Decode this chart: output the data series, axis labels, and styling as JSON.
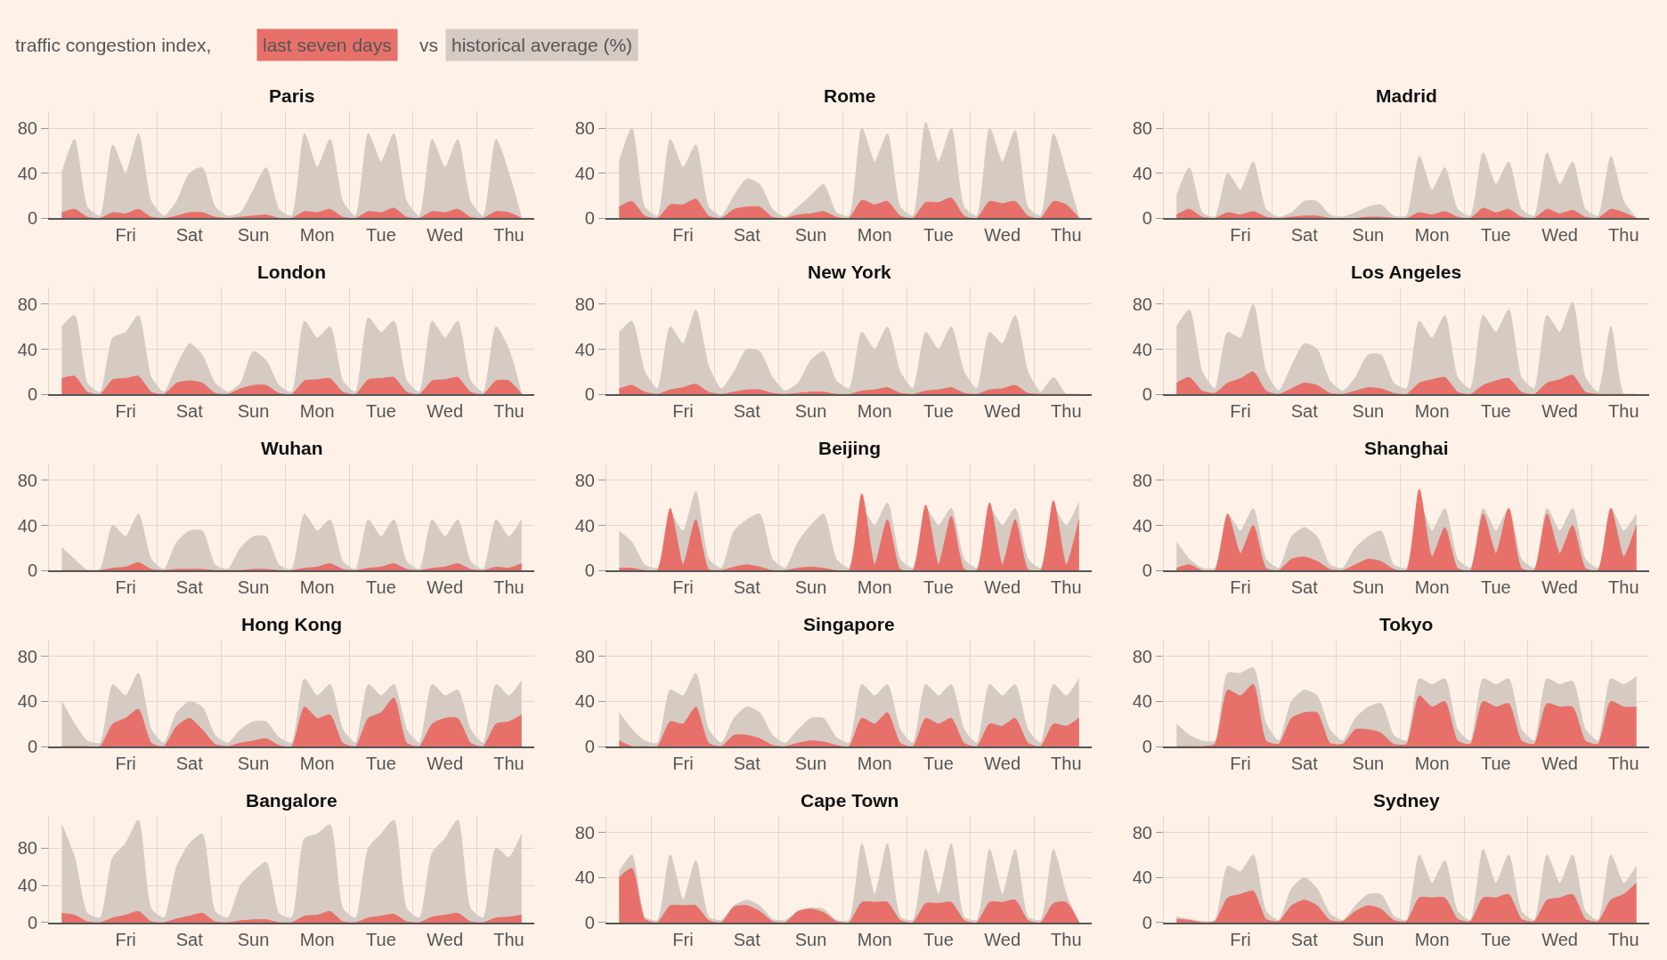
{
  "chart_data": [
    {
      "type": "area",
      "title": "Paris",
      "annotations": [
        "traffic congestion index,",
        "vs"
      ],
      "legend": "top right",
      "grid": true,
      "categories": [
        null,
        null,
        null,
        null,
        null,
        "Fri",
        null,
        null,
        null,
        null,
        "Sat",
        null,
        null,
        null,
        null,
        "Sun",
        null,
        null,
        null,
        null,
        "Mon",
        null,
        null,
        null,
        null,
        "Tue",
        null,
        null,
        null,
        null,
        "Wed",
        null,
        null,
        null,
        null,
        "Thu",
        null
      ],
      "ylim": [
        0,
        95
      ],
      "yticks": [
        0,
        40,
        80
      ],
      "series": [
        {
          "name": "last seven days",
          "color": "#e8706a",
          "values": [
            5,
            8,
            1,
            0,
            5,
            4,
            8,
            1,
            0,
            2,
            5,
            5,
            1,
            0,
            1,
            2,
            3,
            0,
            0,
            6,
            5,
            8,
            1,
            0,
            6,
            5,
            9,
            1,
            0,
            6,
            5,
            8,
            1,
            0,
            6,
            5,
            0
          ]
        },
        {
          "name": "historical average (%)",
          "color": "#d5cbc3",
          "values": [
            40,
            70,
            10,
            2,
            65,
            40,
            75,
            15,
            2,
            15,
            40,
            45,
            10,
            2,
            5,
            25,
            45,
            8,
            2,
            75,
            45,
            70,
            15,
            2,
            75,
            50,
            75,
            15,
            2,
            70,
            45,
            70,
            15,
            2,
            70,
            40,
            0
          ]
        }
      ]
    },
    {
      "type": "area",
      "title": "Rome",
      "grid": true,
      "categories": [
        null,
        null,
        null,
        null,
        null,
        "Fri",
        null,
        null,
        null,
        null,
        "Sat",
        null,
        null,
        null,
        null,
        "Sun",
        null,
        null,
        null,
        null,
        "Mon",
        null,
        null,
        null,
        null,
        "Tue",
        null,
        null,
        null,
        null,
        "Wed",
        null,
        null,
        null,
        null,
        "Thu",
        null
      ],
      "ylim": [
        0,
        95
      ],
      "yticks": [
        0,
        40,
        80
      ],
      "series": [
        {
          "color": "#e8706a",
          "values": [
            10,
            15,
            2,
            0,
            12,
            12,
            17,
            2,
            0,
            8,
            10,
            10,
            1,
            0,
            3,
            4,
            6,
            1,
            0,
            16,
            12,
            15,
            2,
            0,
            14,
            14,
            18,
            2,
            0,
            15,
            13,
            15,
            2,
            0,
            15,
            12,
            0
          ]
        },
        {
          "color": "#d5cbc3",
          "values": [
            50,
            80,
            10,
            2,
            70,
            45,
            65,
            10,
            2,
            20,
            35,
            30,
            8,
            1,
            10,
            20,
            30,
            5,
            2,
            80,
            50,
            75,
            10,
            2,
            85,
            50,
            80,
            10,
            2,
            80,
            50,
            78,
            10,
            2,
            75,
            40,
            0
          ]
        }
      ]
    },
    {
      "type": "area",
      "title": "Madrid",
      "grid": true,
      "categories": [
        null,
        null,
        null,
        null,
        null,
        "Fri",
        null,
        null,
        null,
        null,
        "Sat",
        null,
        null,
        null,
        null,
        "Sun",
        null,
        null,
        null,
        null,
        "Mon",
        null,
        null,
        null,
        null,
        "Tue",
        null,
        null,
        null,
        null,
        "Wed",
        null,
        null,
        null,
        null,
        "Thu",
        null
      ],
      "ylim": [
        0,
        95
      ],
      "yticks": [
        0,
        40,
        80
      ],
      "series": [
        {
          "color": "#e8706a",
          "values": [
            3,
            8,
            1,
            0,
            5,
            3,
            6,
            1,
            0,
            1,
            2,
            2,
            0,
            0,
            0,
            1,
            1,
            0,
            0,
            5,
            3,
            6,
            1,
            0,
            9,
            5,
            8,
            1,
            0,
            8,
            4,
            7,
            1,
            0,
            8,
            5,
            0
          ]
        },
        {
          "color": "#d5cbc3",
          "values": [
            20,
            45,
            5,
            1,
            40,
            25,
            50,
            8,
            1,
            5,
            15,
            15,
            3,
            1,
            5,
            10,
            12,
            2,
            2,
            55,
            25,
            45,
            8,
            2,
            58,
            30,
            50,
            8,
            2,
            58,
            30,
            50,
            8,
            2,
            55,
            15,
            0
          ]
        }
      ]
    },
    {
      "type": "area",
      "title": "London",
      "grid": true,
      "categories": [
        null,
        null,
        null,
        null,
        null,
        "Fri",
        null,
        null,
        null,
        null,
        "Sat",
        null,
        null,
        null,
        null,
        "Sun",
        null,
        null,
        null,
        null,
        "Mon",
        null,
        null,
        null,
        null,
        "Tue",
        null,
        null,
        null,
        null,
        "Wed",
        null,
        null,
        null,
        null,
        "Thu",
        null
      ],
      "ylim": [
        0,
        95
      ],
      "yticks": [
        0,
        40,
        80
      ],
      "series": [
        {
          "color": "#e8706a",
          "values": [
            14,
            16,
            2,
            0,
            13,
            14,
            16,
            2,
            0,
            10,
            12,
            10,
            1,
            0,
            5,
            8,
            8,
            1,
            0,
            12,
            13,
            14,
            2,
            0,
            13,
            14,
            15,
            2,
            0,
            12,
            13,
            15,
            2,
            0,
            12,
            12,
            0
          ]
        },
        {
          "color": "#d5cbc3",
          "values": [
            60,
            70,
            10,
            2,
            50,
            55,
            70,
            15,
            2,
            25,
            45,
            35,
            10,
            2,
            10,
            38,
            30,
            8,
            2,
            65,
            50,
            60,
            12,
            2,
            68,
            55,
            65,
            12,
            2,
            65,
            50,
            65,
            12,
            2,
            60,
            40,
            0
          ]
        }
      ]
    },
    {
      "type": "area",
      "title": "New York",
      "grid": true,
      "categories": [
        null,
        null,
        null,
        null,
        null,
        "Fri",
        null,
        null,
        null,
        null,
        "Sat",
        null,
        null,
        null,
        null,
        "Sun",
        null,
        null,
        null,
        null,
        "Mon",
        null,
        null,
        null,
        null,
        "Tue",
        null,
        null,
        null,
        null,
        "Wed",
        null,
        null,
        null,
        null,
        "Thu",
        null
      ],
      "ylim": [
        0,
        95
      ],
      "yticks": [
        0,
        40,
        80
      ],
      "series": [
        {
          "color": "#e8706a",
          "values": [
            5,
            8,
            2,
            0,
            4,
            6,
            9,
            2,
            0,
            2,
            4,
            4,
            1,
            0,
            1,
            2,
            2,
            0,
            0,
            3,
            4,
            6,
            1,
            0,
            3,
            4,
            6,
            1,
            0,
            4,
            5,
            8,
            1,
            0,
            0,
            0,
            0
          ]
        },
        {
          "color": "#d5cbc3",
          "values": [
            55,
            65,
            20,
            5,
            60,
            45,
            75,
            25,
            5,
            20,
            40,
            38,
            15,
            3,
            10,
            30,
            38,
            12,
            5,
            55,
            40,
            60,
            20,
            5,
            55,
            40,
            60,
            20,
            5,
            55,
            45,
            70,
            20,
            2,
            15,
            0,
            0
          ]
        }
      ]
    },
    {
      "type": "area",
      "title": "Los Angeles",
      "grid": true,
      "categories": [
        null,
        null,
        null,
        null,
        null,
        "Fri",
        null,
        null,
        null,
        null,
        "Sat",
        null,
        null,
        null,
        null,
        "Sun",
        null,
        null,
        null,
        null,
        "Mon",
        null,
        null,
        null,
        null,
        "Tue",
        null,
        null,
        null,
        null,
        "Wed",
        null,
        null,
        null,
        null,
        "Thu",
        null
      ],
      "ylim": [
        0,
        95
      ],
      "yticks": [
        0,
        40,
        80
      ],
      "series": [
        {
          "color": "#e8706a",
          "values": [
            10,
            15,
            3,
            1,
            10,
            14,
            20,
            3,
            0,
            5,
            10,
            8,
            1,
            0,
            3,
            6,
            5,
            1,
            0,
            10,
            13,
            15,
            2,
            0,
            8,
            12,
            14,
            2,
            0,
            10,
            13,
            17,
            2,
            0,
            0,
            0,
            0
          ]
        },
        {
          "color": "#d5cbc3",
          "values": [
            60,
            75,
            20,
            5,
            55,
            50,
            80,
            20,
            3,
            25,
            45,
            40,
            12,
            3,
            15,
            35,
            35,
            10,
            5,
            65,
            50,
            70,
            15,
            5,
            70,
            55,
            75,
            15,
            5,
            70,
            55,
            82,
            15,
            2,
            60,
            0,
            0
          ]
        }
      ]
    },
    {
      "type": "area",
      "title": "Wuhan",
      "grid": true,
      "categories": [
        null,
        null,
        null,
        null,
        null,
        "Fri",
        null,
        null,
        null,
        null,
        "Sat",
        null,
        null,
        null,
        null,
        "Sun",
        null,
        null,
        null,
        null,
        "Mon",
        null,
        null,
        null,
        null,
        "Tue",
        null,
        null,
        null,
        null,
        "Wed",
        null,
        null,
        null,
        null,
        "Thu",
        null
      ],
      "ylim": [
        0,
        95
      ],
      "yticks": [
        0,
        40,
        80
      ],
      "series": [
        {
          "color": "#e8706a",
          "values": [
            0,
            0,
            0,
            0,
            2,
            3,
            7,
            1,
            0,
            1,
            1,
            1,
            0,
            0,
            0,
            1,
            1,
            0,
            0,
            2,
            3,
            6,
            1,
            0,
            2,
            3,
            6,
            1,
            0,
            2,
            3,
            6,
            1,
            0,
            3,
            2,
            6
          ]
        },
        {
          "color": "#d5cbc3",
          "values": [
            20,
            10,
            0,
            1,
            40,
            30,
            50,
            10,
            1,
            25,
            35,
            35,
            5,
            1,
            20,
            30,
            30,
            5,
            1,
            50,
            35,
            45,
            8,
            1,
            45,
            30,
            45,
            8,
            1,
            45,
            30,
            45,
            8,
            1,
            45,
            30,
            45
          ]
        }
      ]
    },
    {
      "type": "area",
      "title": "Beijing",
      "grid": true,
      "categories": [
        null,
        null,
        null,
        null,
        null,
        "Fri",
        null,
        null,
        null,
        null,
        "Sat",
        null,
        null,
        null,
        null,
        "Sun",
        null,
        null,
        null,
        null,
        "Mon",
        null,
        null,
        null,
        null,
        "Tue",
        null,
        null,
        null,
        null,
        "Wed",
        null,
        null,
        null,
        null,
        "Thu",
        null
      ],
      "ylim": [
        0,
        95
      ],
      "yticks": [
        0,
        40,
        80
      ],
      "series": [
        {
          "color": "#e8706a",
          "values": [
            2,
            2,
            0,
            0,
            55,
            5,
            45,
            1,
            0,
            3,
            5,
            3,
            0,
            0,
            2,
            3,
            2,
            0,
            0,
            68,
            5,
            45,
            1,
            0,
            58,
            5,
            48,
            1,
            0,
            60,
            5,
            45,
            1,
            0,
            62,
            5,
            45
          ]
        },
        {
          "color": "#d5cbc3",
          "values": [
            35,
            25,
            5,
            2,
            50,
            35,
            70,
            10,
            2,
            35,
            45,
            50,
            10,
            2,
            25,
            40,
            50,
            10,
            2,
            55,
            40,
            60,
            10,
            2,
            55,
            40,
            55,
            10,
            2,
            55,
            40,
            55,
            10,
            2,
            55,
            40,
            60
          ]
        }
      ]
    },
    {
      "type": "area",
      "title": "Shanghai",
      "grid": true,
      "categories": [
        null,
        null,
        null,
        null,
        null,
        "Fri",
        null,
        null,
        null,
        null,
        "Sat",
        null,
        null,
        null,
        null,
        "Sun",
        null,
        null,
        null,
        null,
        "Mon",
        null,
        null,
        null,
        null,
        "Tue",
        null,
        null,
        null,
        null,
        "Wed",
        null,
        null,
        null,
        null,
        "Thu",
        null
      ],
      "ylim": [
        0,
        95
      ],
      "yticks": [
        0,
        40,
        80
      ],
      "series": [
        {
          "color": "#e8706a",
          "values": [
            2,
            5,
            0,
            0,
            50,
            15,
            40,
            2,
            0,
            10,
            12,
            8,
            1,
            0,
            5,
            10,
            8,
            1,
            0,
            72,
            12,
            38,
            2,
            0,
            50,
            15,
            55,
            2,
            0,
            50,
            15,
            40,
            2,
            0,
            55,
            12,
            40
          ]
        },
        {
          "color": "#d5cbc3",
          "values": [
            25,
            10,
            2,
            2,
            50,
            35,
            55,
            10,
            2,
            30,
            38,
            30,
            5,
            2,
            20,
            30,
            35,
            5,
            2,
            60,
            35,
            55,
            10,
            2,
            55,
            35,
            55,
            10,
            2,
            55,
            35,
            55,
            10,
            2,
            55,
            35,
            50
          ]
        }
      ]
    },
    {
      "type": "area",
      "title": "Hong Kong",
      "grid": true,
      "categories": [
        null,
        null,
        null,
        null,
        null,
        "Fri",
        null,
        null,
        null,
        null,
        "Sat",
        null,
        null,
        null,
        null,
        "Sun",
        null,
        null,
        null,
        null,
        "Mon",
        null,
        null,
        null,
        null,
        "Tue",
        null,
        null,
        null,
        null,
        "Wed",
        null,
        null,
        null,
        null,
        "Thu",
        null
      ],
      "ylim": [
        0,
        95
      ],
      "yticks": [
        0,
        40,
        80
      ],
      "series": [
        {
          "color": "#e8706a",
          "values": [
            0,
            0,
            0,
            0,
            20,
            25,
            33,
            3,
            0,
            18,
            25,
            15,
            2,
            0,
            3,
            5,
            7,
            1,
            0,
            35,
            25,
            28,
            3,
            0,
            25,
            30,
            43,
            3,
            0,
            20,
            25,
            25,
            3,
            0,
            20,
            22,
            28
          ]
        },
        {
          "color": "#d5cbc3",
          "values": [
            40,
            20,
            5,
            3,
            55,
            45,
            65,
            15,
            3,
            30,
            40,
            35,
            10,
            3,
            15,
            22,
            22,
            8,
            3,
            60,
            45,
            55,
            15,
            3,
            55,
            45,
            55,
            15,
            3,
            55,
            45,
            50,
            15,
            3,
            55,
            45,
            58
          ]
        }
      ]
    },
    {
      "type": "area",
      "title": "Singapore",
      "grid": true,
      "categories": [
        null,
        null,
        null,
        null,
        null,
        "Fri",
        null,
        null,
        null,
        null,
        "Sat",
        null,
        null,
        null,
        null,
        "Sun",
        null,
        null,
        null,
        null,
        "Mon",
        null,
        null,
        null,
        null,
        "Tue",
        null,
        null,
        null,
        null,
        "Wed",
        null,
        null,
        null,
        null,
        "Thu",
        null
      ],
      "ylim": [
        0,
        95
      ],
      "yticks": [
        0,
        40,
        80
      ],
      "series": [
        {
          "color": "#e8706a",
          "values": [
            5,
            0,
            0,
            0,
            22,
            20,
            35,
            3,
            0,
            10,
            10,
            7,
            1,
            0,
            3,
            5,
            4,
            1,
            0,
            25,
            20,
            30,
            3,
            0,
            25,
            20,
            25,
            3,
            0,
            20,
            18,
            25,
            3,
            0,
            20,
            18,
            25
          ]
        },
        {
          "color": "#d5cbc3",
          "values": [
            30,
            15,
            5,
            3,
            50,
            45,
            65,
            15,
            3,
            25,
            35,
            30,
            10,
            3,
            15,
            25,
            25,
            8,
            3,
            55,
            45,
            55,
            15,
            3,
            55,
            45,
            55,
            15,
            3,
            55,
            45,
            55,
            15,
            3,
            55,
            45,
            60
          ]
        }
      ]
    },
    {
      "type": "area",
      "title": "Tokyo",
      "grid": true,
      "categories": [
        null,
        null,
        null,
        null,
        null,
        "Fri",
        null,
        null,
        null,
        null,
        "Sat",
        null,
        null,
        null,
        null,
        "Sun",
        null,
        null,
        null,
        null,
        "Mon",
        null,
        null,
        null,
        null,
        "Tue",
        null,
        null,
        null,
        null,
        "Wed",
        null,
        null,
        null,
        null,
        "Thu",
        null
      ],
      "ylim": [
        0,
        95
      ],
      "yticks": [
        0,
        40,
        80
      ],
      "series": [
        {
          "color": "#e8706a",
          "values": [
            0,
            0,
            0,
            2,
            50,
            45,
            55,
            5,
            2,
            25,
            30,
            30,
            3,
            2,
            15,
            15,
            12,
            2,
            2,
            45,
            35,
            40,
            5,
            2,
            40,
            35,
            38,
            5,
            2,
            38,
            35,
            35,
            5,
            2,
            40,
            35,
            35
          ]
        },
        {
          "color": "#d5cbc3",
          "values": [
            20,
            10,
            5,
            5,
            65,
            65,
            70,
            20,
            5,
            40,
            50,
            45,
            15,
            5,
            25,
            35,
            38,
            10,
            5,
            60,
            55,
            60,
            15,
            5,
            60,
            55,
            60,
            15,
            5,
            60,
            55,
            58,
            15,
            5,
            60,
            55,
            62
          ]
        }
      ]
    },
    {
      "type": "area",
      "title": "Bangalore",
      "grid": true,
      "categories": [
        null,
        null,
        null,
        null,
        null,
        "Fri",
        null,
        null,
        null,
        null,
        "Sat",
        null,
        null,
        null,
        null,
        "Sun",
        null,
        null,
        null,
        null,
        "Mon",
        null,
        null,
        null,
        null,
        "Tue",
        null,
        null,
        null,
        null,
        "Wed",
        null,
        null,
        null,
        null,
        "Thu",
        null
      ],
      "ylim": [
        0,
        115
      ],
      "yticks": [
        0,
        40,
        80
      ],
      "series": [
        {
          "color": "#e8706a",
          "values": [
            10,
            8,
            1,
            0,
            5,
            8,
            12,
            1,
            0,
            4,
            7,
            10,
            1,
            0,
            2,
            3,
            3,
            0,
            0,
            7,
            8,
            12,
            1,
            0,
            5,
            7,
            9,
            1,
            0,
            6,
            8,
            10,
            1,
            0,
            5,
            6,
            8
          ]
        },
        {
          "color": "#d5cbc3",
          "values": [
            105,
            70,
            10,
            5,
            70,
            85,
            110,
            15,
            5,
            60,
            85,
            95,
            12,
            5,
            40,
            55,
            65,
            10,
            5,
            90,
            95,
            105,
            15,
            5,
            80,
            95,
            110,
            15,
            5,
            75,
            90,
            110,
            15,
            5,
            80,
            70,
            95
          ]
        }
      ]
    },
    {
      "type": "area",
      "title": "Cape Town",
      "grid": true,
      "categories": [
        null,
        null,
        null,
        null,
        null,
        "Fri",
        null,
        null,
        null,
        null,
        "Sat",
        null,
        null,
        null,
        null,
        "Sun",
        null,
        null,
        null,
        null,
        "Mon",
        null,
        null,
        null,
        null,
        "Tue",
        null,
        null,
        null,
        null,
        "Wed",
        null,
        null,
        null,
        null,
        "Thu",
        null
      ],
      "ylim": [
        0,
        95
      ],
      "yticks": [
        0,
        40,
        80
      ],
      "series": [
        {
          "color": "#e8706a",
          "values": [
            40,
            48,
            3,
            0,
            15,
            15,
            15,
            2,
            0,
            14,
            15,
            10,
            1,
            0,
            10,
            12,
            9,
            1,
            0,
            18,
            18,
            18,
            2,
            0,
            17,
            17,
            18,
            2,
            0,
            18,
            18,
            20,
            2,
            0,
            17,
            18,
            0
          ]
        },
        {
          "color": "#d5cbc3",
          "values": [
            45,
            60,
            5,
            2,
            60,
            20,
            55,
            5,
            2,
            15,
            20,
            15,
            3,
            2,
            10,
            13,
            12,
            2,
            2,
            70,
            25,
            70,
            5,
            2,
            65,
            25,
            70,
            5,
            2,
            65,
            25,
            65,
            5,
            2,
            65,
            25,
            0
          ]
        }
      ]
    },
    {
      "type": "area",
      "title": "Sydney",
      "grid": true,
      "categories": [
        null,
        null,
        null,
        null,
        null,
        "Fri",
        null,
        null,
        null,
        null,
        "Sat",
        null,
        null,
        null,
        null,
        "Sun",
        null,
        null,
        null,
        null,
        "Mon",
        null,
        null,
        null,
        null,
        "Tue",
        null,
        null,
        null,
        null,
        "Wed",
        null,
        null,
        null,
        null,
        "Thu",
        null
      ],
      "ylim": [
        0,
        95
      ],
      "yticks": [
        0,
        40,
        80
      ],
      "series": [
        {
          "color": "#e8706a",
          "values": [
            3,
            2,
            0,
            1,
            22,
            25,
            28,
            3,
            1,
            15,
            20,
            15,
            2,
            1,
            10,
            15,
            12,
            2,
            1,
            22,
            22,
            22,
            3,
            1,
            22,
            22,
            25,
            3,
            1,
            20,
            22,
            25,
            3,
            1,
            20,
            25,
            35
          ]
        },
        {
          "color": "#d5cbc3",
          "values": [
            5,
            3,
            1,
            2,
            50,
            45,
            60,
            10,
            2,
            30,
            40,
            30,
            8,
            2,
            15,
            25,
            25,
            6,
            2,
            60,
            35,
            55,
            10,
            2,
            65,
            35,
            60,
            10,
            2,
            60,
            35,
            60,
            10,
            2,
            60,
            35,
            50
          ]
        }
      ]
    }
  ]
}
